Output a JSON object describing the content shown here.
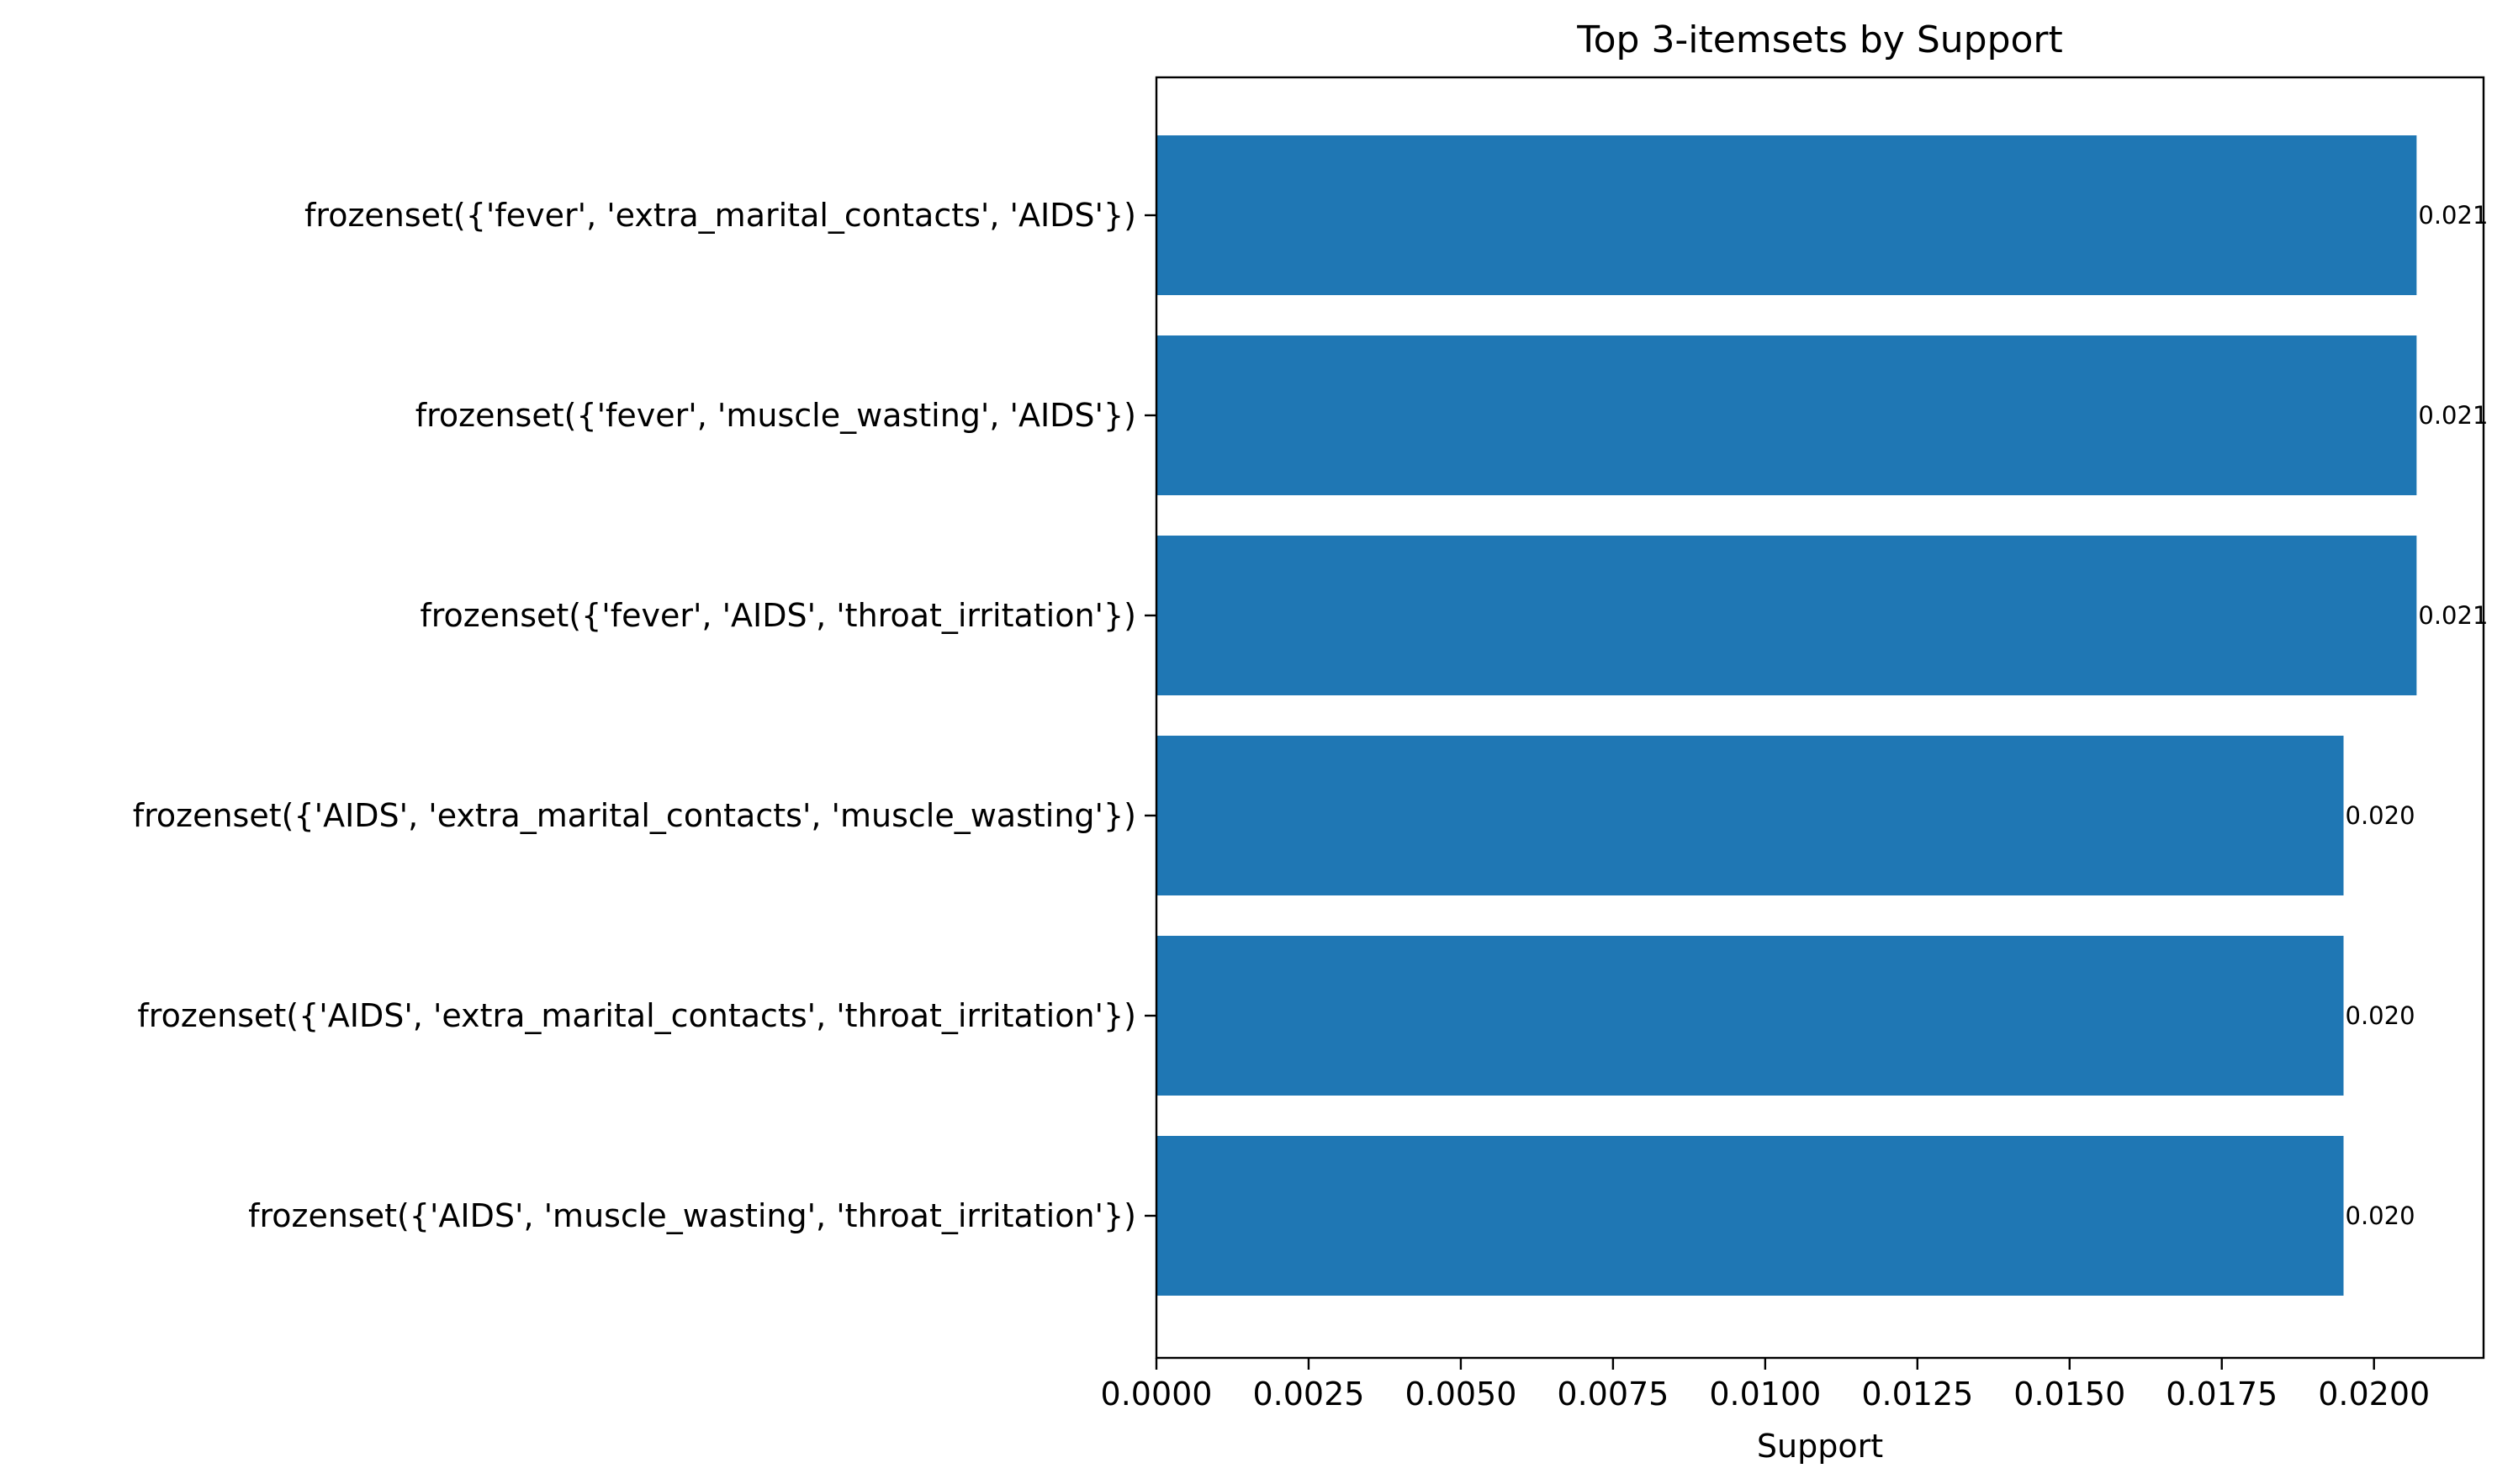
{
  "chart_data": {
    "type": "bar",
    "orientation": "horizontal",
    "title": "Top 3-itemsets by Support",
    "xlabel": "Support",
    "ylabel": "",
    "xlim": [
      0,
      0.0218
    ],
    "xticks": [
      0.0,
      0.0025,
      0.005,
      0.0075,
      0.01,
      0.0125,
      0.015,
      0.0175,
      0.02
    ],
    "xtick_labels": [
      "0.0000",
      "0.0025",
      "0.0050",
      "0.0075",
      "0.0100",
      "0.0125",
      "0.0150",
      "0.0175",
      "0.0200"
    ],
    "categories": [
      "frozenset({'fever', 'extra_marital_contacts', 'AIDS'})",
      "frozenset({'fever', 'muscle_wasting', 'AIDS'})",
      "frozenset({'fever', 'AIDS', 'throat_irritation'})",
      "frozenset({'AIDS', 'extra_marital_contacts', 'muscle_wasting'})",
      "frozenset({'AIDS', 'extra_marital_contacts', 'throat_irritation'})",
      "frozenset({'AIDS', 'muscle_wasting', 'throat_irritation'})"
    ],
    "values": [
      0.0207,
      0.0207,
      0.0207,
      0.0195,
      0.0195,
      0.0195
    ],
    "value_labels": [
      "0.021",
      "0.021",
      "0.021",
      "0.020",
      "0.020",
      "0.020"
    ],
    "bar_color": "#1f77b4",
    "grid": false,
    "legend": "none"
  }
}
